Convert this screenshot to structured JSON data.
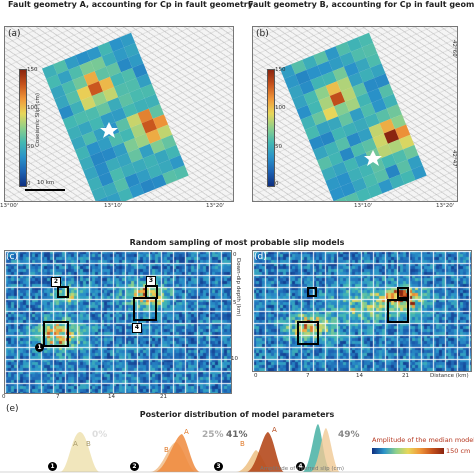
{
  "top_left_title": "Fault geometry A, accounting for Cp in fault geometry",
  "top_right_title": "Fault geometry B, accounting for Cp in fault geometry",
  "panel_a_tag": "(a)",
  "panel_b_tag": "(b)",
  "panel_c_tag": "(c)",
  "panel_d_tag": "(d)",
  "panel_e_tag": "(e)",
  "colorbar_label": "Coseismic Slip (cm)",
  "colorbar_ticks": [
    "150",
    "100",
    "50",
    "0"
  ],
  "scale_label": "10 km",
  "lon_ticks": [
    "13°00'",
    "13°10'",
    "13°20'"
  ],
  "lat_ticks": [
    "42°60'",
    "42°47'"
  ],
  "section_title_c": "Random sampling of most probable slip models",
  "section_title_e": "Posterior distribution of model parameters",
  "depth_axis_label": "Down-dip depth (km)",
  "depth_ticks": [
    "0",
    "5",
    "10"
  ],
  "distance_ticks": [
    "0",
    "7",
    "14",
    "21"
  ],
  "distance_label": "Distance (km)",
  "box_numbers": [
    "1",
    "2",
    "3",
    "4"
  ],
  "percentages": [
    "0%",
    "25%",
    "41%",
    "49%"
  ],
  "curve_letters": [
    "A",
    "B"
  ],
  "legend_title": "Amplitude of the median model",
  "legend_max": "150 cm",
  "legend_axis": "Amplitude of inferred slip (cm)",
  "colors": {
    "low": "#0f2f80",
    "mid": "#44b8b2",
    "high": "#8a2510",
    "curve_a": "#e8823a",
    "curve_b": "#f0c995",
    "curve_teal": "#46b0a3"
  }
}
